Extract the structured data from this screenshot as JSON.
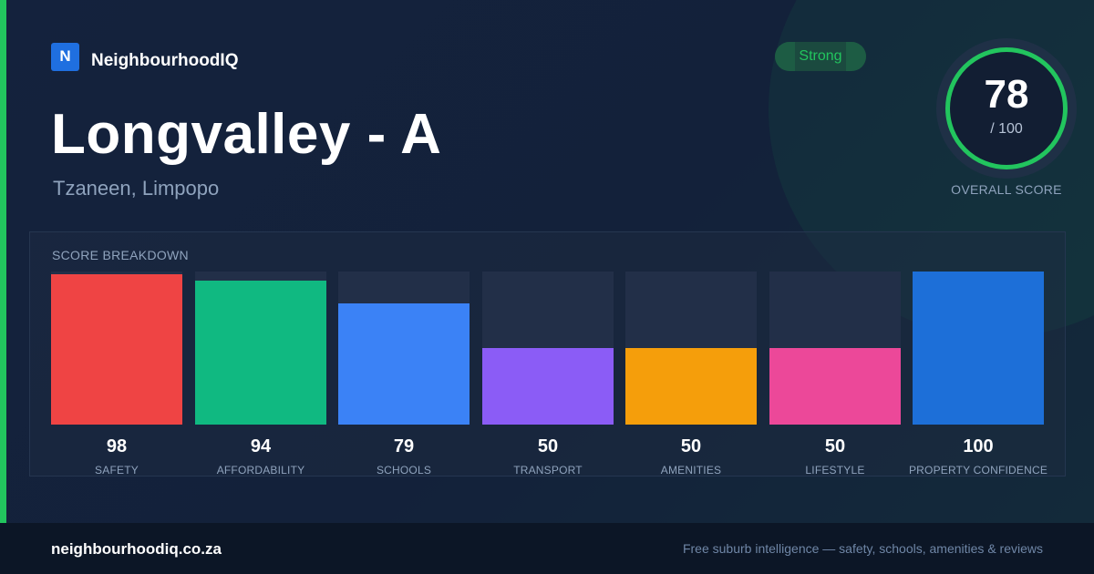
{
  "brand": {
    "logo_letter": "N",
    "name": "NeighbourhoodIQ",
    "accent_color": "#22c55e",
    "logo_color": "#1f6fe0"
  },
  "header": {
    "title": "Longvalley - A",
    "subtitle": "Tzaneen, Limpopo",
    "badge": "Strong"
  },
  "score": {
    "value": "78",
    "denominator": "/ 100",
    "label": "OVERALL SCORE"
  },
  "breakdown": {
    "title": "SCORE BREAKDOWN",
    "max": 100,
    "items": [
      {
        "label": "SAFETY",
        "value": 98,
        "color": "#ef4444"
      },
      {
        "label": "AFFORDABILITY",
        "value": 94,
        "color": "#10b981"
      },
      {
        "label": "SCHOOLS",
        "value": 79,
        "color": "#3b82f6"
      },
      {
        "label": "TRANSPORT",
        "value": 50,
        "color": "#8b5cf6"
      },
      {
        "label": "AMENITIES",
        "value": 50,
        "color": "#f59e0b"
      },
      {
        "label": "LIFESTYLE",
        "value": 50,
        "color": "#ec4899"
      },
      {
        "label": "PROPERTY CONFIDENCE",
        "value": 100,
        "color": "#1d6fd8"
      }
    ]
  },
  "footer": {
    "domain": "neighbourhoodiq.co.za",
    "tagline": "Free suburb intelligence — safety, schools, amenities & reviews"
  }
}
